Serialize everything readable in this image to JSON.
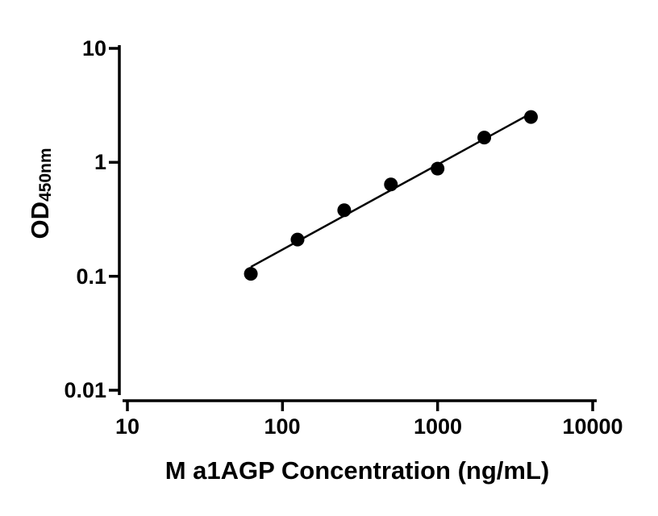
{
  "chart_data": {
    "type": "scatter",
    "title": "",
    "xlabel": "M a1AGP Concentration (ng/mL)",
    "ylabel": "OD",
    "ylabel_subscript": "450nm",
    "x_scale": "log10",
    "y_scale": "log10",
    "xlim": [
      10,
      10000
    ],
    "ylim": [
      0.01,
      10
    ],
    "x_ticks": [
      10,
      100,
      1000,
      10000
    ],
    "x_tick_labels": [
      "10",
      "100",
      "1000",
      "10000"
    ],
    "y_ticks": [
      0.01,
      0.1,
      1,
      10
    ],
    "y_tick_labels": [
      "0.01",
      "0.1",
      "1",
      "10"
    ],
    "points": [
      {
        "x": 62.5,
        "y": 0.105
      },
      {
        "x": 125,
        "y": 0.21
      },
      {
        "x": 250,
        "y": 0.38
      },
      {
        "x": 500,
        "y": 0.64
      },
      {
        "x": 1000,
        "y": 0.88
      },
      {
        "x": 2000,
        "y": 1.65
      },
      {
        "x": 4000,
        "y": 2.5
      }
    ],
    "trendline": "linear-loglog",
    "grid": false,
    "legend_position": "none",
    "marker_color": "#000000",
    "line_color": "#000000",
    "axis_color": "#000000",
    "background_color": "#ffffff"
  }
}
